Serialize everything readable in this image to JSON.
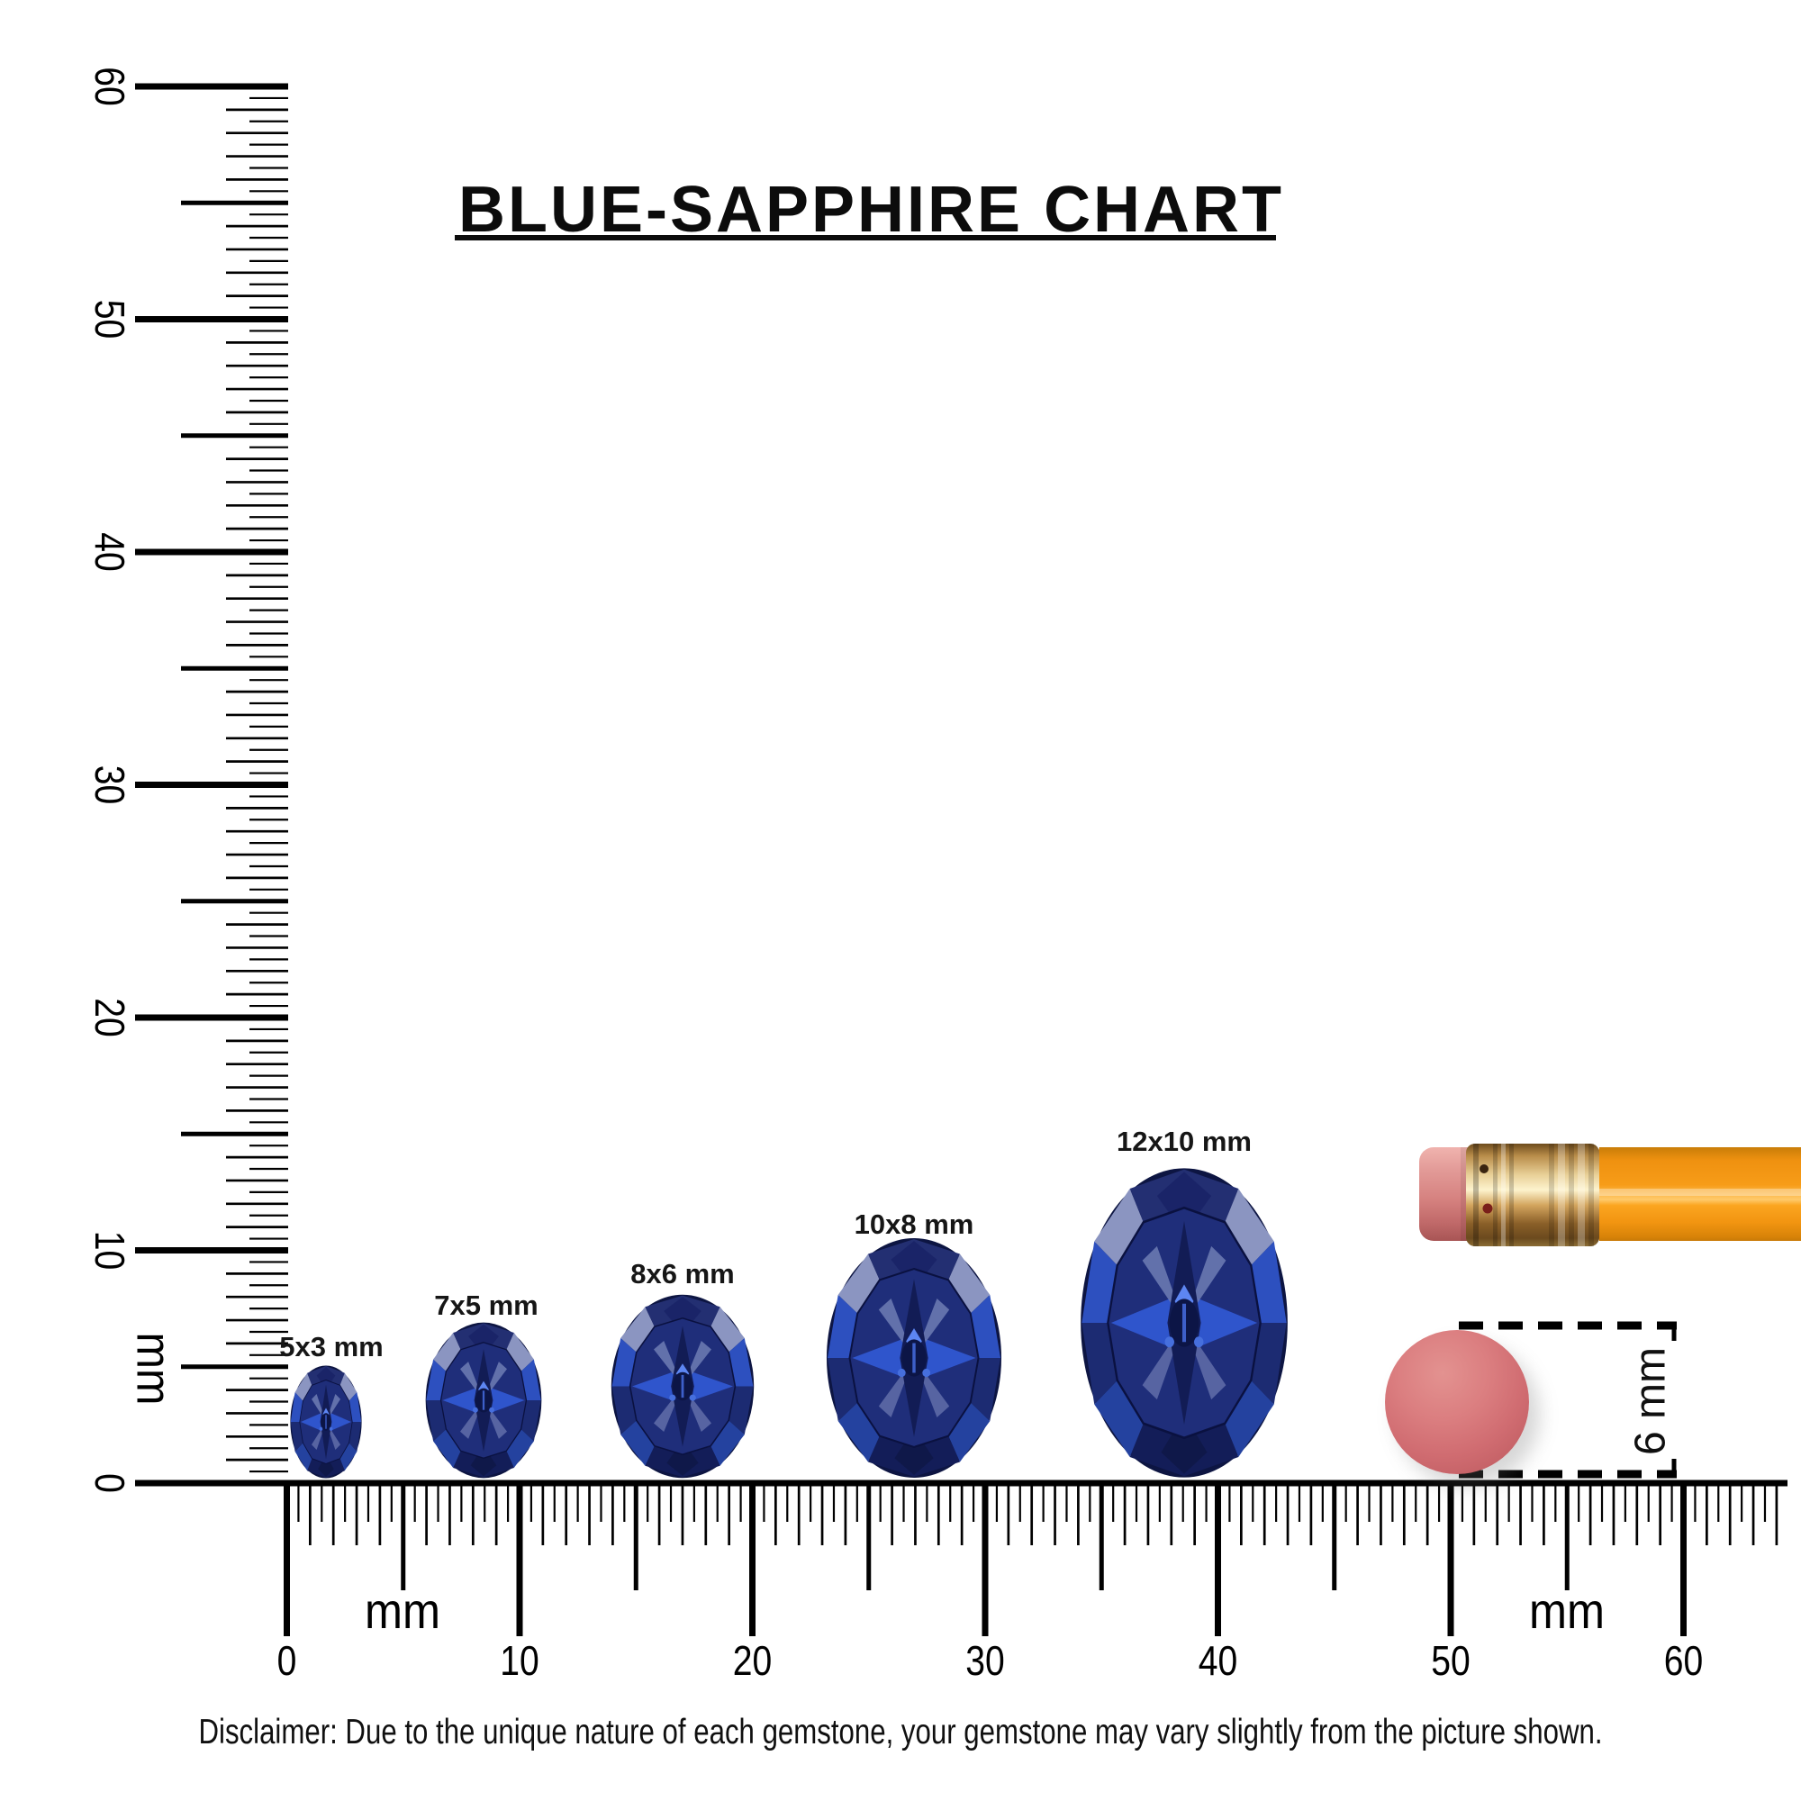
{
  "title": {
    "text": "BLUE-SAPPHIRE CHART"
  },
  "gems": [
    {
      "label": "5x3 mm",
      "length_mm": 5,
      "width_mm": 3
    },
    {
      "label": "7x5 mm",
      "length_mm": 7,
      "width_mm": 5
    },
    {
      "label": "8x6 mm",
      "length_mm": 8,
      "width_mm": 6
    },
    {
      "label": "10x8 mm",
      "length_mm": 10,
      "width_mm": 8
    },
    {
      "label": "12x10 mm",
      "length_mm": 12,
      "width_mm": 10
    }
  ],
  "rulers": {
    "unit": "mm",
    "vertical": {
      "tick_labels": [
        "0",
        "10",
        "20",
        "30",
        "40",
        "50",
        "60"
      ],
      "unit_label": "mm"
    },
    "horizontal": {
      "tick_labels": [
        "0",
        "10",
        "20",
        "30",
        "40",
        "50",
        "60"
      ],
      "unit_labels": [
        "mm",
        "mm"
      ]
    }
  },
  "eraser_measure": {
    "label": "6 mm",
    "diameter_mm": 6
  },
  "disclaimer": {
    "text": "Disclaimer: Due to the unique nature of each gemstone, your gemstone may vary slightly from the picture shown."
  },
  "colors": {
    "background": "#ffffff",
    "ink": "#000000",
    "sapphire_dark": "#131d58",
    "sapphire_mid": "#1f2e7a",
    "sapphire_bright": "#2f55cc",
    "sapphire_highlight": "#8b95c1",
    "pencil_body": "#f79c18",
    "pencil_ferrule": "#d3a55e",
    "pencil_eraser": "#d68280",
    "round_eraser": "#d06c71"
  },
  "chart_data": {
    "type": "table",
    "title": "BLUE-SAPPHIRE CHART",
    "categories": [
      "5x3 mm",
      "7x5 mm",
      "8x6 mm",
      "10x8 mm",
      "12x10 mm"
    ],
    "series": [
      {
        "name": "length_mm",
        "values": [
          5,
          7,
          8,
          10,
          12
        ]
      },
      {
        "name": "width_mm",
        "values": [
          3,
          5,
          6,
          8,
          10
        ]
      }
    ],
    "axes": {
      "unit": "mm",
      "vertical_range": [
        0,
        60
      ],
      "horizontal_range": [
        0,
        60
      ],
      "tick_step_mm": 0.5,
      "label_step_mm": 10
    },
    "reference_objects": [
      {
        "name": "pencil with eraser"
      },
      {
        "name": "round eraser",
        "diameter_label": "6 mm",
        "diameter_mm": 6
      }
    ],
    "legend": "none",
    "grid": false
  }
}
